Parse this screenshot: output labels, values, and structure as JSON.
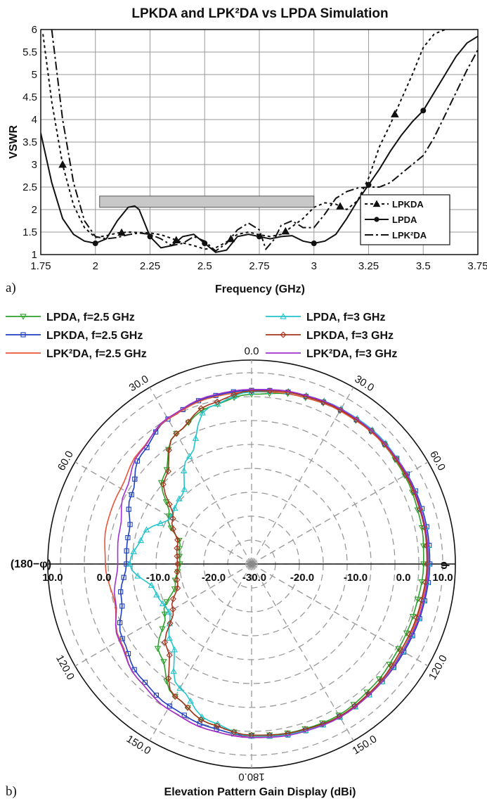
{
  "chart_data": [
    {
      "type": "line",
      "panel_label": "a)",
      "title": "LPKDA and LPK²DA vs LPDA Simulation",
      "xlabel": "Frequency (GHz)",
      "ylabel": "VSWR",
      "xlim": [
        1.75,
        3.75
      ],
      "ylim": [
        1,
        6
      ],
      "x_ticks": [
        "1.75",
        "2",
        "2.25",
        "2.5",
        "2.75",
        "3",
        "3.25",
        "3.5",
        "3.75"
      ],
      "y_ticks": [
        "1",
        "1.5",
        "2",
        "2.5",
        "3",
        "3.5",
        "4",
        "4.5",
        "5",
        "5.5",
        "6"
      ],
      "grid": true,
      "legend_position": "bottom-right",
      "shaded_region": {
        "x": [
          2.0,
          3.0
        ],
        "y": [
          2.05,
          2.3
        ]
      },
      "series": [
        {
          "name": "LPKDA",
          "style": "dashed",
          "marker": "triangle",
          "x": [
            1.76,
            1.8,
            1.85,
            1.9,
            1.95,
            2.0,
            2.05,
            2.1,
            2.15,
            2.2,
            2.25,
            2.3,
            2.35,
            2.4,
            2.45,
            2.5,
            2.55,
            2.6,
            2.65,
            2.7,
            2.75,
            2.8,
            2.85,
            2.9,
            2.95,
            3.0,
            3.05,
            3.1,
            3.15,
            3.2,
            3.25,
            3.3,
            3.35,
            3.4,
            3.45,
            3.5,
            3.55,
            3.6
          ],
          "y": [
            5.9,
            4.4,
            3.0,
            2.1,
            1.6,
            1.38,
            1.42,
            1.48,
            1.5,
            1.49,
            1.48,
            1.44,
            1.36,
            1.26,
            1.2,
            1.12,
            1.15,
            1.28,
            1.45,
            1.5,
            1.44,
            1.4,
            1.45,
            1.62,
            1.8,
            2.05,
            2.15,
            2.12,
            2.0,
            2.2,
            2.7,
            3.4,
            3.9,
            4.45,
            5.0,
            5.6,
            5.9,
            6.0
          ],
          "marker_x": [
            1.85,
            2.12,
            2.37,
            2.62,
            2.87,
            3.12,
            3.37
          ]
        },
        {
          "name": "LPDA",
          "style": "solid",
          "marker": "circle",
          "x": [
            1.75,
            1.8,
            1.85,
            1.9,
            1.95,
            2.0,
            2.05,
            2.1,
            2.15,
            2.18,
            2.2,
            2.25,
            2.3,
            2.35,
            2.4,
            2.45,
            2.5,
            2.55,
            2.6,
            2.65,
            2.7,
            2.75,
            2.8,
            2.85,
            2.9,
            2.95,
            3.0,
            3.05,
            3.1,
            3.15,
            3.2,
            3.25,
            3.3,
            3.35,
            3.4,
            3.45,
            3.5,
            3.55,
            3.6,
            3.65,
            3.7,
            3.75
          ],
          "y": [
            3.7,
            2.6,
            1.8,
            1.45,
            1.3,
            1.25,
            1.35,
            1.75,
            2.05,
            2.08,
            2.0,
            1.4,
            1.15,
            1.2,
            1.4,
            1.45,
            1.25,
            1.05,
            1.1,
            1.4,
            1.45,
            1.4,
            1.35,
            1.4,
            1.42,
            1.3,
            1.25,
            1.3,
            1.45,
            1.8,
            2.2,
            2.55,
            2.9,
            3.3,
            3.65,
            3.95,
            4.2,
            4.6,
            5.0,
            5.4,
            5.7,
            5.85
          ],
          "marker_x": [
            2.0,
            2.25,
            2.5,
            2.75,
            3.0,
            3.25,
            3.5
          ]
        },
        {
          "name": "LPK²DA",
          "style": "dash-dot",
          "marker": "none",
          "x": [
            1.8,
            1.85,
            1.9,
            1.95,
            2.0,
            2.05,
            2.1,
            2.15,
            2.2,
            2.25,
            2.3,
            2.35,
            2.4,
            2.45,
            2.5,
            2.55,
            2.6,
            2.65,
            2.7,
            2.75,
            2.78,
            2.82,
            2.85,
            2.9,
            2.95,
            3.0,
            3.05,
            3.1,
            3.15,
            3.2,
            3.25,
            3.3,
            3.35,
            3.4,
            3.45,
            3.5,
            3.55,
            3.6,
            3.65,
            3.7,
            3.75
          ],
          "y": [
            6.0,
            4.0,
            2.6,
            1.75,
            1.4,
            1.35,
            1.38,
            1.44,
            1.48,
            1.45,
            1.35,
            1.2,
            1.25,
            1.4,
            1.3,
            1.08,
            1.25,
            1.55,
            1.7,
            1.55,
            1.12,
            1.35,
            1.65,
            1.75,
            1.6,
            1.6,
            1.9,
            2.25,
            2.4,
            2.48,
            2.5,
            2.5,
            2.6,
            2.8,
            3.0,
            3.2,
            3.6,
            4.1,
            4.6,
            5.1,
            5.55
          ]
        }
      ]
    },
    {
      "type": "polar",
      "panel_label": "b)",
      "title": "Elevation Pattern Gain Display (dBi)",
      "r_range": [
        -30,
        10
      ],
      "radial_ticks_left": [
        "10.0",
        "0.0",
        "-10.0",
        "-20.0",
        "-30.0"
      ],
      "radial_ticks_right": [
        "-20.0",
        "-10.0",
        "0.0",
        "10.0"
      ],
      "angle_labels": [
        "0.0",
        "30.0",
        "60.0",
        "30.0",
        "60.0",
        "120.0",
        "150.0",
        "180.0",
        "150.0",
        "120.0"
      ],
      "left_axis_label": "(180−φ)",
      "right_axis_label": "φ",
      "legend_position": "top",
      "series": [
        {
          "name": "LPDA, f=2.5 GHz",
          "color": "#2ca02c",
          "marker": "triangle-down",
          "angles_deg": [
            0,
            15,
            30,
            45,
            60,
            75,
            90,
            105,
            120,
            135,
            150,
            165,
            180,
            195,
            210,
            225,
            240,
            255,
            270,
            285,
            300,
            315,
            330,
            345
          ],
          "gain_dbi": [
            5.5,
            6.5,
            7.0,
            7.3,
            7.0,
            6.5,
            6.0,
            5.5,
            5.5,
            6.0,
            6.5,
            6.2,
            5.8,
            4.5,
            2.0,
            -3.0,
            -9.0,
            -13.5,
            -15.0,
            -14.5,
            -10.0,
            -4.0,
            1.5,
            4.0
          ]
        },
        {
          "name": "LPKDA, f=2.5 GHz",
          "color": "#1f3fbf",
          "marker": "square",
          "angles_deg": [
            0,
            15,
            30,
            45,
            60,
            75,
            90,
            105,
            120,
            135,
            150,
            165,
            180,
            195,
            210,
            225,
            240,
            255,
            270,
            285,
            300,
            315,
            330,
            345
          ],
          "gain_dbi": [
            6.3,
            6.8,
            7.2,
            7.5,
            7.6,
            7.5,
            7.3,
            7.0,
            6.8,
            6.8,
            6.9,
            6.6,
            6.0,
            5.2,
            4.3,
            3.2,
            1.2,
            -1.8,
            -3.8,
            -3.5,
            -1.0,
            2.5,
            5.0,
            6.0
          ]
        },
        {
          "name": "LPK²DA, f=2.5 GHz",
          "color": "#e8553a",
          "marker": "none",
          "angles_deg": [
            0,
            15,
            30,
            45,
            60,
            75,
            90,
            105,
            120,
            135,
            150,
            165,
            180,
            195,
            210,
            225,
            240,
            255,
            270,
            285,
            300,
            315,
            330,
            345
          ],
          "gain_dbi": [
            6.0,
            6.5,
            7.0,
            7.3,
            7.2,
            7.0,
            6.8,
            6.5,
            6.4,
            6.6,
            6.9,
            6.6,
            6.2,
            5.8,
            5.0,
            3.8,
            1.8,
            -0.3,
            0.6,
            1.4,
            1.6,
            3.2,
            5.0,
            5.8
          ]
        },
        {
          "name": "LPDA, f=3 GHz",
          "color": "#22c4cc",
          "marker": "triangle-up",
          "angles_deg": [
            0,
            15,
            30,
            45,
            60,
            75,
            90,
            105,
            120,
            135,
            150,
            165,
            180,
            195,
            210,
            225,
            240,
            255,
            270,
            285,
            300,
            315,
            330,
            345
          ],
          "gain_dbi": [
            6.0,
            7.0,
            7.5,
            7.8,
            7.5,
            7.2,
            7.0,
            6.8,
            6.5,
            6.8,
            7.0,
            6.5,
            6.0,
            4.0,
            0.0,
            -6.5,
            -10.0,
            -9.0,
            -4.5,
            -6.5,
            -10.5,
            -9.5,
            -4.0,
            4.0
          ]
        },
        {
          "name": "LPKDA, f=3 GHz",
          "color": "#a4341c",
          "marker": "diamond",
          "angles_deg": [
            0,
            15,
            30,
            45,
            60,
            75,
            90,
            105,
            120,
            135,
            150,
            165,
            180,
            195,
            210,
            225,
            240,
            255,
            270,
            285,
            300,
            315,
            330,
            345
          ],
          "gain_dbi": [
            6.2,
            6.8,
            7.2,
            7.5,
            7.3,
            7.0,
            6.7,
            6.3,
            6.1,
            6.5,
            6.8,
            6.3,
            5.8,
            4.5,
            2.0,
            -5.0,
            -11.0,
            -14.0,
            -14.5,
            -14.0,
            -11.0,
            -4.5,
            1.5,
            4.5
          ]
        },
        {
          "name": "LPK²DA, f=3 GHz",
          "color": "#a030d0",
          "marker": "none",
          "angles_deg": [
            0,
            15,
            30,
            45,
            60,
            75,
            90,
            105,
            120,
            135,
            150,
            165,
            180,
            195,
            210,
            225,
            240,
            255,
            270,
            285,
            300,
            315,
            330,
            345
          ],
          "gain_dbi": [
            6.5,
            7.0,
            7.4,
            7.6,
            7.5,
            7.2,
            7.0,
            6.8,
            6.6,
            6.8,
            7.0,
            6.7,
            6.3,
            5.8,
            5.0,
            3.8,
            2.0,
            -0.5,
            -2.0,
            -1.5,
            0.5,
            3.0,
            5.2,
            6.2
          ]
        }
      ]
    }
  ],
  "colors": {
    "grid": "#9a9a9a",
    "shade_fill": "#c8c8c8",
    "axis": "#111111"
  }
}
